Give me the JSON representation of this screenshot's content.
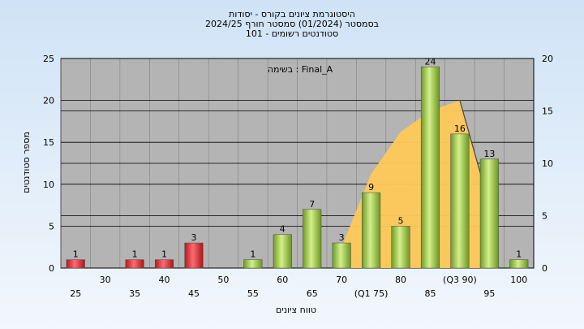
{
  "chart_data": {
    "type": "bar",
    "title": "היסטוגרמת ציונים בקורס - יסודות",
    "subtitle_1": "בסמסטר  (01/2024)  סמסטר חורף 2024/25",
    "subtitle_2": "סטודנטים רשומים - 101",
    "annotation": "בשימה : Final_A",
    "xlabel": "טווח ציונים",
    "ylabel": "מספר סטודנטים",
    "ylim": [
      0,
      25
    ],
    "y_ticks": [
      0,
      5,
      10,
      15,
      20,
      25
    ],
    "y2lim": [
      0,
      20
    ],
    "y2_ticks": [
      0,
      5,
      10,
      15,
      20
    ],
    "x_ticks": [
      "25",
      "30",
      "35",
      "40",
      "45",
      "50",
      "55",
      "60",
      "65",
      "70",
      "(Q1 75)",
      "80",
      "85",
      "(Q3 90)",
      "95",
      "100"
    ],
    "categories": [
      "25",
      "30",
      "35",
      "40",
      "45",
      "50",
      "55",
      "60",
      "65",
      "70",
      "75",
      "80",
      "85",
      "90",
      "95",
      "100"
    ],
    "values": [
      1,
      0,
      1,
      1,
      3,
      0,
      1,
      4,
      7,
      3,
      9,
      5,
      24,
      16,
      13,
      1
    ],
    "value_labels": [
      "1",
      "",
      "1",
      "1",
      "3",
      "",
      "1",
      "4",
      "7",
      "3",
      "9",
      "5",
      "24",
      "16",
      "13",
      "1"
    ],
    "bar_colors": [
      "#d8242e",
      "",
      "#d8242e",
      "#d8242e",
      "#d8242e",
      "",
      "#8fbf3a",
      "#8fbf3a",
      "#8fbf3a",
      "#8fbf3a",
      "#8fbf3a",
      "#8fbf3a",
      "#8fbf3a",
      "#8fbf3a",
      "#8fbf3a",
      "#8fbf3a"
    ],
    "area": {
      "x": [
        "70",
        "75",
        "80",
        "85",
        "90",
        "95"
      ],
      "values": [
        2,
        9,
        13,
        15,
        16,
        6
      ],
      "color": "#ffc95a"
    },
    "plot_background": "#b4b4b4",
    "grid": true
  }
}
